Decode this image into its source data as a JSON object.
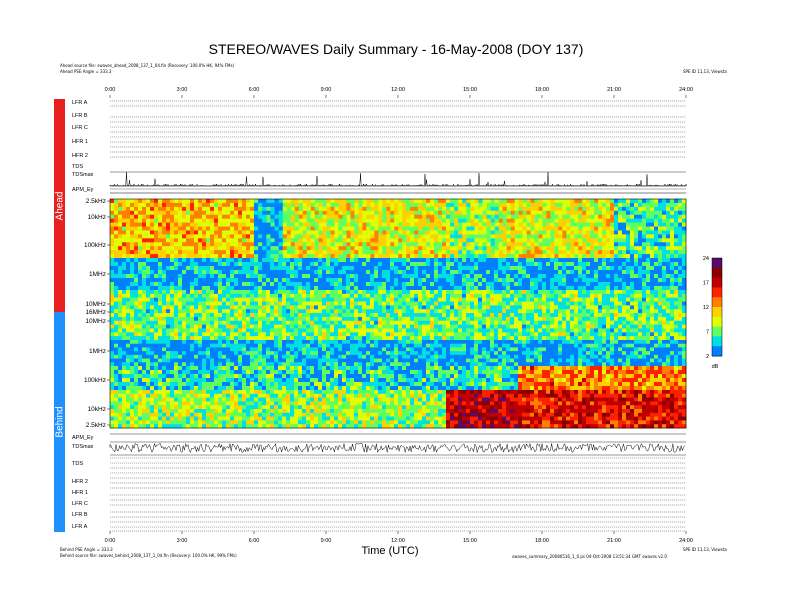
{
  "title": "STEREO/WAVES Daily Summary - 16-May-2008 (DOY 137)",
  "ahead": {
    "source_line": "Ahead source file: swaves_ahead_2008_137_1_04.fin (Recovery: 100.0% HK, 94% FMs)",
    "pse_line": "Ahead PSE Angle = 333.3",
    "side_label": "Ahead",
    "rows": [
      "LFR A",
      "LFR B",
      "LFR C",
      "HFR 1",
      "HFR 2",
      "TDS",
      "TDSmax",
      "APM_Ey"
    ]
  },
  "behind": {
    "source_line": "Behind source file: swaves_behind_2008_137_1_04.fin (Recovery: 100.0% HK, 99% FMs)",
    "pse_line": "Behind PSE Angle = 333.3",
    "side_label": "Behind",
    "rows": [
      "APM_Ey",
      "TDSmax",
      "TDS",
      "HFR 2",
      "HFR 1",
      "LFR C",
      "LFR B",
      "LFR A"
    ]
  },
  "right_header": "SPE ID 11,13, Viewsta",
  "right_footer_1": "SPE ID 11,13, Viewsta",
  "right_footer_2": "swaves_summary_20080516_1_0.ps  04-Oct-2008 13:51:34 GMT  swaves v2.0",
  "time_ticks": [
    "0:00",
    "3:00",
    "6:00",
    "9:00",
    "12:00",
    "15:00",
    "18:00",
    "21:00",
    "24:00"
  ],
  "freq_labels_ahead": [
    "2.5kHz",
    "10kHz",
    "100kHz",
    "1MHz",
    "10MHz"
  ],
  "freq_labels_behind": [
    "16MHz",
    "10MHz",
    "1MHz",
    "100kHz",
    "10kHz",
    "2.5kHz"
  ],
  "small_labels": {
    "tdsmax_ahead": "1e3",
    "apm_ahead": "0",
    "apm_ahead_top": "5",
    "apm_ahead_bot": "-5"
  },
  "colorbar": {
    "ticks": [
      "24",
      "17",
      "12",
      "7",
      "2"
    ],
    "unit": "dB",
    "colors": [
      "#5a0a6e",
      "#8a0000",
      "#c00000",
      "#ff2000",
      "#ff8000",
      "#ffd000",
      "#e0ff00",
      "#60ff60",
      "#00e0e0",
      "#0080ff"
    ]
  },
  "chart_data": {
    "type": "heatmap",
    "title": "STEREO/WAVES Daily Summary - 16-May-2008 (DOY 137)",
    "xlabel": "Time (UTC)",
    "xlim": [
      0,
      24
    ],
    "x_ticks": [
      0,
      3,
      6,
      9,
      12,
      15,
      18,
      21,
      24
    ],
    "panels": [
      {
        "name": "Ahead",
        "freq_ticks": [
          "2.5kHz",
          "10kHz",
          "100kHz",
          "1MHz",
          "10MHz"
        ],
        "bands": [
          {
            "freq": "2.5kHz-100kHz",
            "t0": 0,
            "t1": 6,
            "level_dB": 12
          },
          {
            "freq": "2.5kHz-100kHz",
            "t0": 6,
            "t1": 7.2,
            "level_dB": 3
          },
          {
            "freq": "2.5kHz-100kHz",
            "t0": 7.2,
            "t1": 14,
            "level_dB": 10
          },
          {
            "freq": "2.5kHz-100kHz",
            "t0": 14,
            "t1": 16.2,
            "level_dB": 8
          },
          {
            "freq": "2.5kHz-100kHz",
            "t0": 16.2,
            "t1": 21,
            "level_dB": 10
          },
          {
            "freq": "2.5kHz-100kHz",
            "t0": 21,
            "t1": 24,
            "level_dB": 6
          },
          {
            "freq": "1MHz",
            "t0": 0,
            "t1": 24,
            "level_dB": 3
          },
          {
            "freq": "10MHz",
            "t0": 0,
            "t1": 24,
            "level_dB": 7
          }
        ]
      },
      {
        "name": "Behind",
        "freq_ticks": [
          "16MHz",
          "10MHz",
          "1MHz",
          "100kHz",
          "10kHz",
          "2.5kHz"
        ],
        "bands": [
          {
            "freq": "1MHz",
            "t0": 0,
            "t1": 24,
            "level_dB": 3
          },
          {
            "freq": "100kHz",
            "t0": 0,
            "t1": 17,
            "level_dB": 5
          },
          {
            "freq": "100kHz",
            "t0": 17,
            "t1": 24,
            "level_dB": 14
          },
          {
            "freq": "10kHz-2.5kHz",
            "t0": 0,
            "t1": 14,
            "level_dB": 8
          },
          {
            "freq": "10kHz-2.5kHz",
            "t0": 14,
            "t1": 17,
            "level_dB": 20
          },
          {
            "freq": "10kHz-2.5kHz",
            "t0": 17,
            "t1": 24,
            "level_dB": 18
          }
        ]
      }
    ],
    "colorbar_range_dB": [
      2,
      24
    ]
  }
}
